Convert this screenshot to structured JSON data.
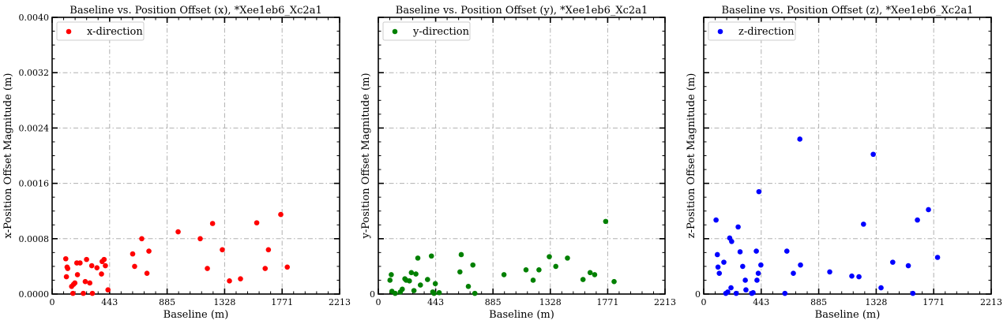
{
  "colors": {
    "x": "#ff0000",
    "y": "#008000",
    "z": "#0000ff",
    "grid": "#b0b0b0"
  },
  "chart_data": [
    {
      "type": "scatter",
      "title": "Baseline vs. Position Offset (x), *Xee1eb6_Xc2a1",
      "xlabel": "Baseline (m)",
      "ylabel": "x-Position Offset Magnitude (m)",
      "xlim": [
        0,
        2213
      ],
      "ylim": [
        0,
        0.004
      ],
      "xticks": [
        "0",
        "443",
        "885",
        "1328",
        "1771",
        "2213"
      ],
      "yticks": [
        "0.0000",
        "0.0008",
        "0.0016",
        "0.0024",
        "0.0032",
        "0.0040"
      ],
      "show_ytick_labels": true,
      "grid": true,
      "legend": "upper-left",
      "series": [
        {
          "name": "x-direction",
          "color": "#ff0000",
          "points": [
            [
              105,
              0.00051
            ],
            [
              110,
              0.00025
            ],
            [
              115,
              0.00039
            ],
            [
              120,
              0.00037
            ],
            [
              150,
              0.00011
            ],
            [
              160,
              1e-05
            ],
            [
              165,
              0.00014
            ],
            [
              175,
              0.00016
            ],
            [
              190,
              0.00045
            ],
            [
              195,
              0.00028
            ],
            [
              215,
              0.00045
            ],
            [
              240,
              1e-05
            ],
            [
              255,
              0.00018
            ],
            [
              265,
              0.0005
            ],
            [
              290,
              0.00016
            ],
            [
              305,
              0.00041
            ],
            [
              310,
              1e-05
            ],
            [
              345,
              0.00038
            ],
            [
              380,
              0.00029
            ],
            [
              385,
              0.00047
            ],
            [
              400,
              0.0005
            ],
            [
              410,
              0.00041
            ],
            [
              430,
              6e-05
            ],
            [
              620,
              0.00058
            ],
            [
              635,
              0.0004
            ],
            [
              690,
              0.0008
            ],
            [
              730,
              0.0003
            ],
            [
              745,
              0.00062
            ],
            [
              970,
              0.0009
            ],
            [
              1140,
              0.0008
            ],
            [
              1195,
              0.00037
            ],
            [
              1235,
              0.00102
            ],
            [
              1310,
              0.00064
            ],
            [
              1365,
              0.00019
            ],
            [
              1450,
              0.00022
            ],
            [
              1575,
              0.00103
            ],
            [
              1640,
              0.00037
            ],
            [
              1665,
              0.00064
            ],
            [
              1760,
              0.00115
            ],
            [
              1810,
              0.00039
            ]
          ]
        }
      ]
    },
    {
      "type": "scatter",
      "title": "Baseline vs. Position Offset (y), *Xee1eb6_Xc2a1",
      "xlabel": "Baseline (m)",
      "ylabel": "y-Position Offset Magnitude (m)",
      "xlim": [
        0,
        2213
      ],
      "ylim": [
        0,
        0.004
      ],
      "xticks": [
        "0",
        "443",
        "885",
        "1328",
        "1771",
        "2213"
      ],
      "yticks": [
        "0",
        "",
        "",
        "",
        "",
        ""
      ],
      "show_ytick_labels": false,
      "grid": true,
      "legend": "upper-left",
      "series": [
        {
          "name": "y-direction",
          "color": "#008000",
          "points": [
            [
              90,
              0.0002
            ],
            [
              100,
              0.00028
            ],
            [
              105,
              4e-05
            ],
            [
              130,
              1e-05
            ],
            [
              170,
              3e-05
            ],
            [
              185,
              7e-05
            ],
            [
              205,
              0.00022
            ],
            [
              215,
              0.0002
            ],
            [
              240,
              0.00019
            ],
            [
              255,
              0.00031
            ],
            [
              275,
              5e-05
            ],
            [
              290,
              0.00029
            ],
            [
              305,
              0.00052
            ],
            [
              325,
              0.00013
            ],
            [
              380,
              0.00021
            ],
            [
              410,
              0.00055
            ],
            [
              420,
              3e-05
            ],
            [
              430,
              1e-05
            ],
            [
              440,
              0.00015
            ],
            [
              470,
              2e-05
            ],
            [
              630,
              0.00032
            ],
            [
              640,
              0.00057
            ],
            [
              695,
              0.00011
            ],
            [
              730,
              0.00042
            ],
            [
              745,
              1e-05
            ],
            [
              970,
              0.00028
            ],
            [
              1140,
              0.00035
            ],
            [
              1195,
              0.0002
            ],
            [
              1240,
              0.00035
            ],
            [
              1320,
              0.00054
            ],
            [
              1370,
              0.0004
            ],
            [
              1460,
              0.00052
            ],
            [
              1580,
              0.00021
            ],
            [
              1635,
              0.00031
            ],
            [
              1670,
              0.00028
            ],
            [
              1755,
              0.00105
            ],
            [
              1820,
              0.00018
            ]
          ]
        }
      ]
    },
    {
      "type": "scatter",
      "title": "Baseline vs. Position Offset (z), *Xee1eb6_Xc2a1",
      "xlabel": "Baseline (m)",
      "ylabel": "z-Position Offset Magnitude (m)",
      "xlim": [
        0,
        2213
      ],
      "ylim": [
        0,
        0.004
      ],
      "xticks": [
        "0",
        "443",
        "885",
        "1328",
        "1771",
        "2213"
      ],
      "yticks": [
        "0",
        "",
        "",
        "",
        "",
        ""
      ],
      "show_ytick_labels": false,
      "grid": true,
      "legend": "upper-left",
      "series": [
        {
          "name": "z-direction",
          "color": "#0000ff",
          "points": [
            [
              95,
              0.00107
            ],
            [
              105,
              0.00057
            ],
            [
              110,
              0.00039
            ],
            [
              120,
              0.0003
            ],
            [
              155,
              0.00046
            ],
            [
              170,
              1e-05
            ],
            [
              185,
              3e-05
            ],
            [
              200,
              0.00081
            ],
            [
              210,
              9e-05
            ],
            [
              215,
              0.00076
            ],
            [
              250,
              1e-05
            ],
            [
              265,
              0.00097
            ],
            [
              280,
              0.00061
            ],
            [
              300,
              0.0004
            ],
            [
              320,
              0.0002
            ],
            [
              325,
              6e-05
            ],
            [
              370,
              1e-05
            ],
            [
              380,
              2e-05
            ],
            [
              405,
              0.00062
            ],
            [
              410,
              0.0002
            ],
            [
              420,
              0.0003
            ],
            [
              425,
              0.00148
            ],
            [
              440,
              0.00042
            ],
            [
              625,
              1e-05
            ],
            [
              640,
              0.00062
            ],
            [
              690,
              0.0003
            ],
            [
              740,
              0.00224
            ],
            [
              745,
              0.00042
            ],
            [
              970,
              0.00032
            ],
            [
              1140,
              0.00026
            ],
            [
              1195,
              0.00025
            ],
            [
              1230,
              0.00101
            ],
            [
              1305,
              0.00202
            ],
            [
              1365,
              9e-05
            ],
            [
              1455,
              0.00046
            ],
            [
              1575,
              0.00041
            ],
            [
              1610,
              1e-05
            ],
            [
              1645,
              0.00107
            ],
            [
              1730,
              0.00122
            ],
            [
              1800,
              0.00053
            ]
          ]
        }
      ]
    }
  ]
}
